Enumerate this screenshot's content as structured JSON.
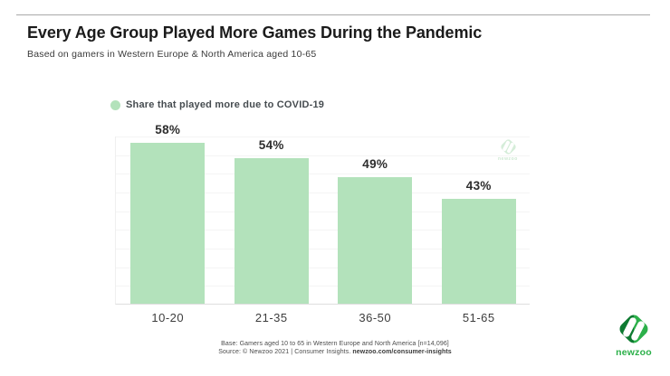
{
  "header": {
    "title": "Every Age Group Played More Games During the Pandemic",
    "subtitle": "Based on gamers in Western Europe & North America aged 10-65"
  },
  "legend": {
    "label": "Share that played more due to COVID-19"
  },
  "chart_data": {
    "type": "bar",
    "title": "Share that played more due to COVID-19",
    "categories": [
      "10-20",
      "21-35",
      "36-50",
      "51-65"
    ],
    "values": [
      58,
      54,
      49,
      43
    ],
    "value_labels": [
      "58%",
      "54%",
      "49%",
      "43%"
    ],
    "unit": "%",
    "xlabel": "",
    "ylabel": "",
    "ylim": [
      15,
      60
    ],
    "gridline_step": 5,
    "grid": true,
    "y_axis_ticks_visible": false,
    "legend_position": "top-left"
  },
  "watermark": {
    "wordmark": "newzoo"
  },
  "footer": {
    "base_line": "Base: Gamers aged 10 to 65 in Western Europe and North America [n=14,096]",
    "source_prefix": "Source: © Newzoo 2021 | Consumer Insights. ",
    "source_link": "newzoo.com/consumer-insights"
  },
  "brand": {
    "wordmark": "newzoo"
  },
  "colors": {
    "bar_fill": "#b3e2bb",
    "logo_dark_green": "#0e7a31",
    "logo_bright_green": "#2cb04a",
    "watermark_green": "#d5edd9",
    "title_text": "#1b1b1b",
    "gridline": "#f4f4f4"
  }
}
